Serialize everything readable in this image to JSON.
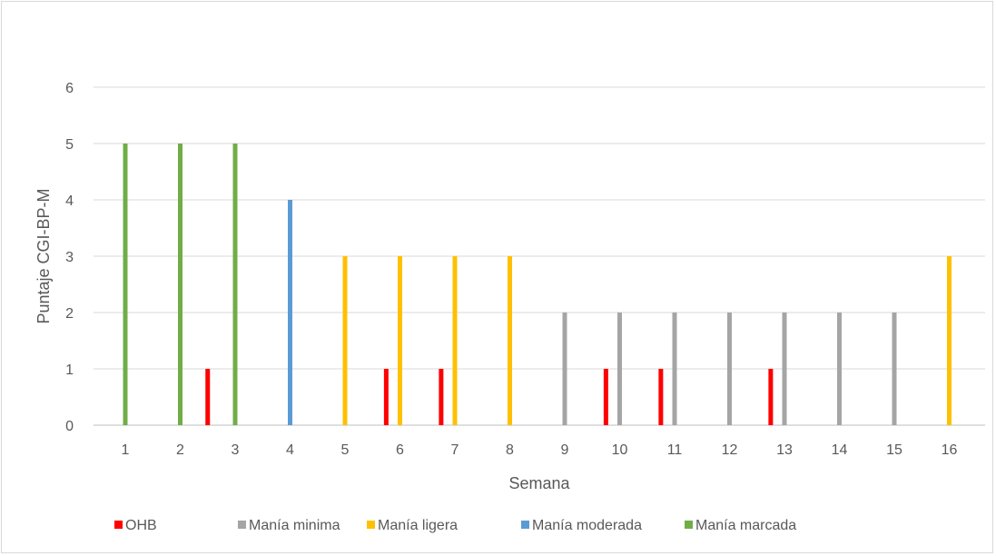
{
  "chart_data": {
    "type": "bar",
    "xlabel": "Semana",
    "ylabel": "Puntaje CGI-BP-M",
    "ylim": [
      0,
      6
    ],
    "yticks": [
      "0",
      "1",
      "2",
      "3",
      "4",
      "5",
      "6"
    ],
    "grid": true,
    "legend_position": "bottom",
    "categories": [
      "1",
      "2",
      "3",
      "4",
      "5",
      "6",
      "7",
      "8",
      "9",
      "10",
      "11",
      "12",
      "13",
      "14",
      "15",
      "16"
    ],
    "series": [
      {
        "name": "OHB",
        "color": "#ff0000",
        "points": [
          {
            "x": 2.5,
            "y": 1
          },
          {
            "x": 5.75,
            "y": 1
          },
          {
            "x": 6.75,
            "y": 1
          },
          {
            "x": 9.75,
            "y": 1
          },
          {
            "x": 10.75,
            "y": 1
          },
          {
            "x": 12.75,
            "y": 1
          }
        ]
      },
      {
        "name": "Manía minima",
        "color": "#a5a5a5",
        "points": [
          {
            "x": 9,
            "y": 2
          },
          {
            "x": 10,
            "y": 2
          },
          {
            "x": 11,
            "y": 2
          },
          {
            "x": 12,
            "y": 2
          },
          {
            "x": 13,
            "y": 2
          },
          {
            "x": 14,
            "y": 2
          },
          {
            "x": 15,
            "y": 2
          }
        ]
      },
      {
        "name": "Manía ligera",
        "color": "#ffc000",
        "points": [
          {
            "x": 5,
            "y": 3
          },
          {
            "x": 6,
            "y": 3
          },
          {
            "x": 7,
            "y": 3
          },
          {
            "x": 8,
            "y": 3
          },
          {
            "x": 16,
            "y": 3
          }
        ]
      },
      {
        "name": "Manía moderada",
        "color": "#5b9bd5",
        "points": [
          {
            "x": 4,
            "y": 4
          }
        ]
      },
      {
        "name": "Manía marcada",
        "color": "#70ad47",
        "points": [
          {
            "x": 1,
            "y": 5
          },
          {
            "x": 2,
            "y": 5
          },
          {
            "x": 3,
            "y": 5
          }
        ]
      }
    ]
  }
}
